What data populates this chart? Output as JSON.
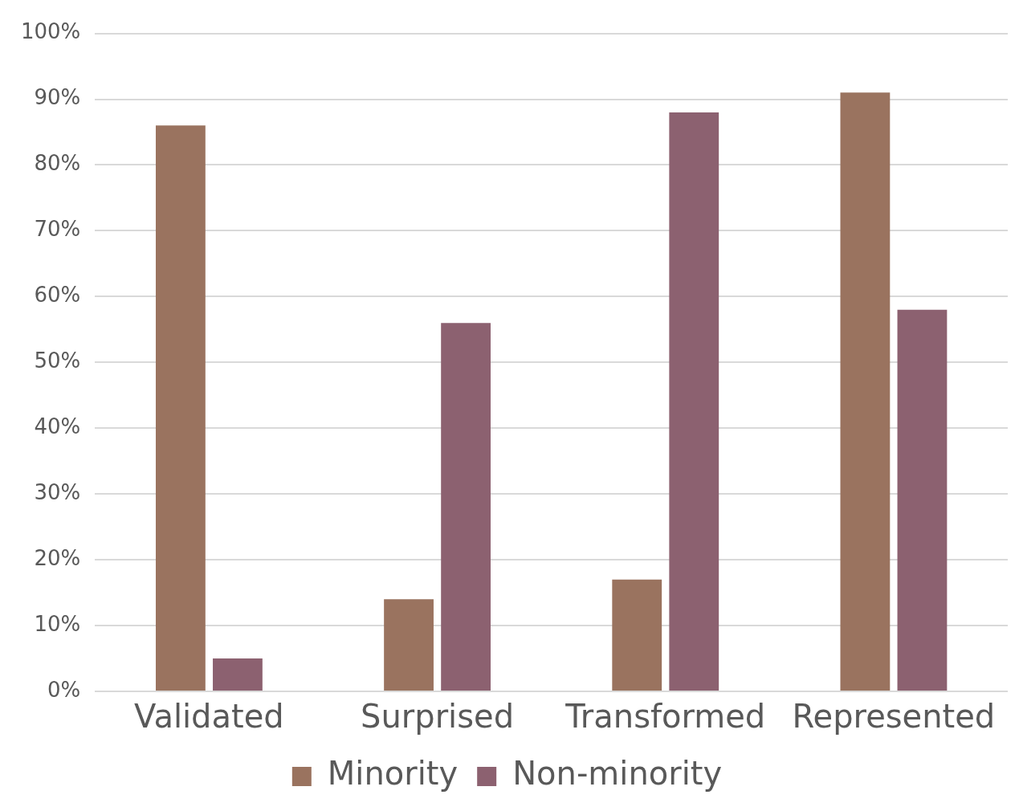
{
  "chart_data": {
    "type": "bar",
    "categories": [
      "Validated",
      "Surprised",
      "Transformed",
      "Represented"
    ],
    "series": [
      {
        "name": "Minority",
        "color": "#9a735f",
        "values": [
          86,
          14,
          17,
          91
        ]
      },
      {
        "name": "Non-minority",
        "color": "#8c6170",
        "values": [
          5,
          56,
          88,
          58
        ]
      }
    ],
    "ylim": [
      0,
      100
    ],
    "yticks": [
      {
        "value": 0,
        "label": "0%"
      },
      {
        "value": 10,
        "label": "10%"
      },
      {
        "value": 20,
        "label": "20%"
      },
      {
        "value": 30,
        "label": "30%"
      },
      {
        "value": 40,
        "label": "40%"
      },
      {
        "value": 50,
        "label": "50%"
      },
      {
        "value": 60,
        "label": "60%"
      },
      {
        "value": 70,
        "label": "70%"
      },
      {
        "value": 80,
        "label": "80%"
      },
      {
        "value": 90,
        "label": "90%"
      },
      {
        "value": 100,
        "label": "100%"
      }
    ],
    "grid": "y",
    "legend": "bottom"
  }
}
